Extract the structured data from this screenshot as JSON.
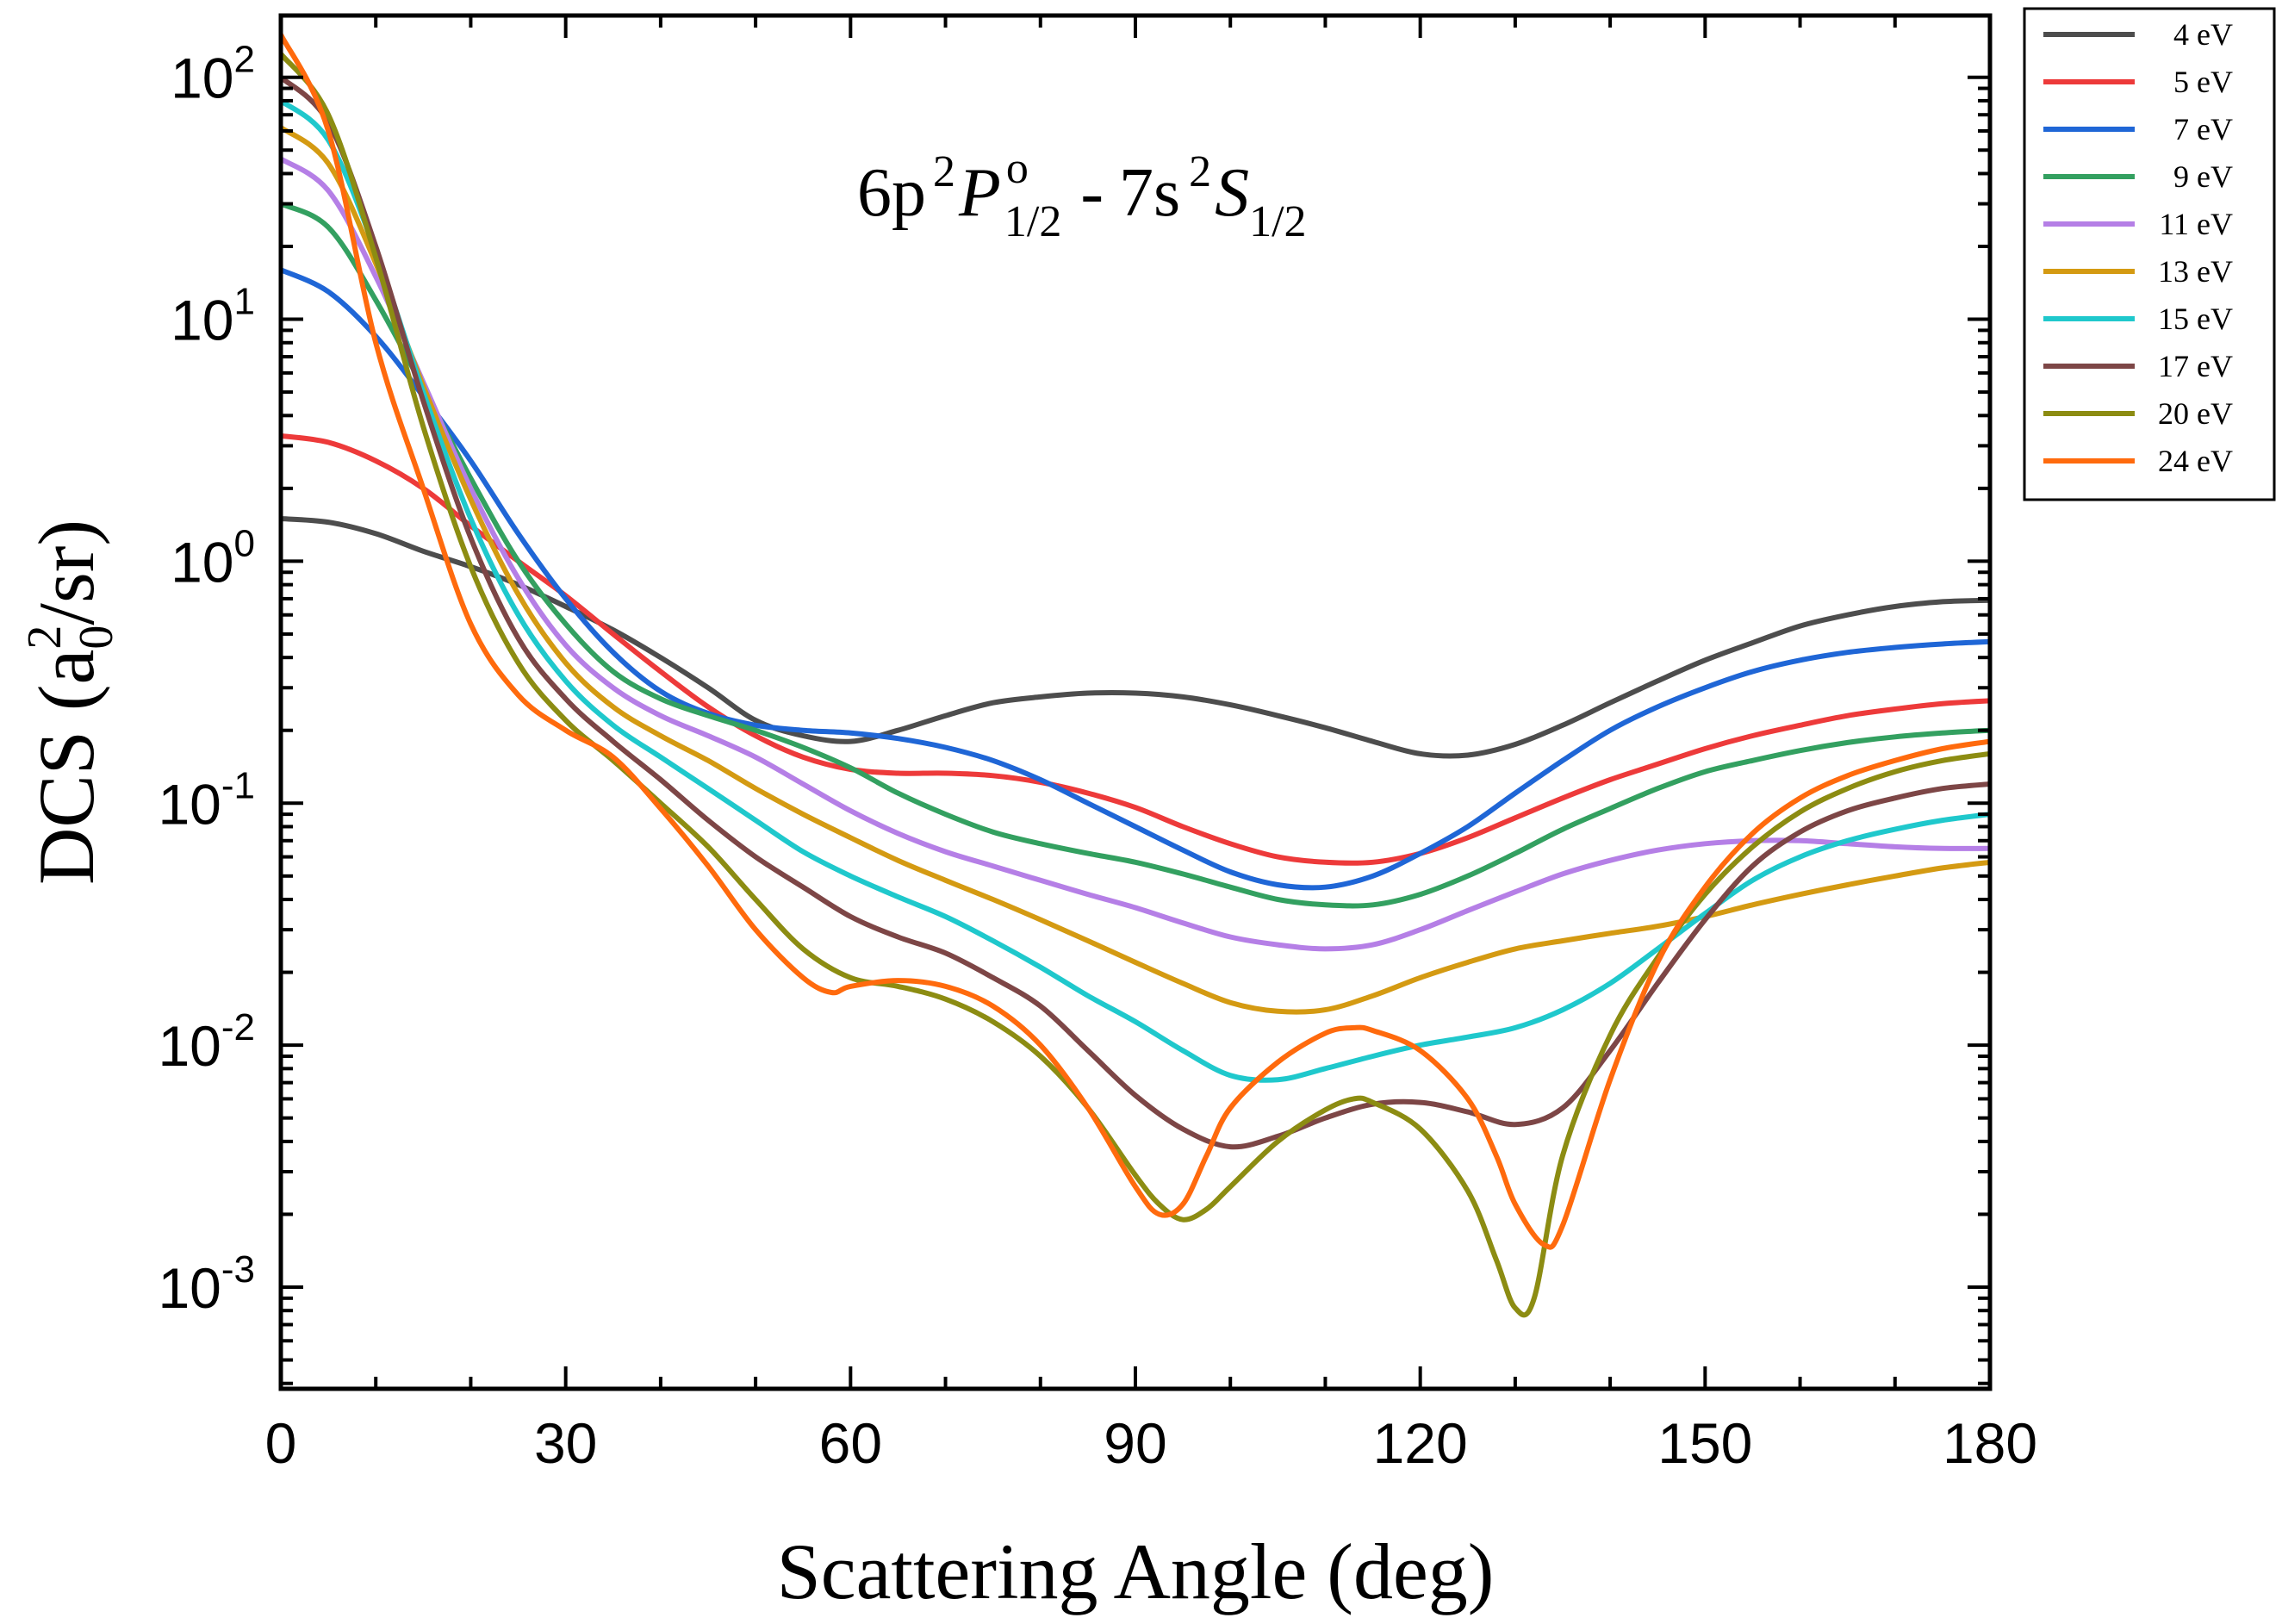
{
  "chart_data": {
    "type": "line",
    "title": "",
    "annotation": {
      "base": "6p",
      "sup1": "2",
      "term1": "P",
      "term1_sup": "o",
      "term1_sub": "1/2",
      "sep": "-",
      "base2": "7s",
      "sup2": "2",
      "term2": "S",
      "term2_sub": "1/2"
    },
    "xlabel": "Scattering Angle (deg)",
    "ylabel": {
      "prefix": "DCS (a",
      "sub": "0",
      "sup": "2",
      "suffix": "/sr)"
    },
    "xscale": "linear",
    "yscale": "log",
    "xlim": [
      0,
      180
    ],
    "ylim": [
      0.00038,
      180
    ],
    "xticks": [
      0,
      30,
      60,
      90,
      120,
      150,
      180
    ],
    "xtick_labels": [
      "0",
      "30",
      "60",
      "90",
      "120",
      "150",
      "180"
    ],
    "yticks": [
      0.001,
      0.01,
      0.1,
      1,
      10,
      100
    ],
    "ytick_labels": [
      {
        "base": "10",
        "exp": "-3"
      },
      {
        "base": "10",
        "exp": "-2"
      },
      {
        "base": "10",
        "exp": "-1"
      },
      {
        "base": "10",
        "exp": "0"
      },
      {
        "base": "10",
        "exp": "1"
      },
      {
        "base": "10",
        "exp": "2"
      }
    ],
    "grid": false,
    "legend_position": "outside-top-right",
    "series": [
      {
        "name": "4 eV",
        "color": "#4d4d4d",
        "x": [
          0,
          5,
          10,
          15,
          20,
          25,
          30,
          35,
          40,
          45,
          50,
          55,
          60,
          65,
          70,
          75,
          80,
          85,
          90,
          95,
          100,
          105,
          110,
          115,
          120,
          125,
          130,
          135,
          140,
          145,
          150,
          155,
          160,
          165,
          170,
          175,
          180
        ],
        "y": [
          1.5,
          1.45,
          1.3,
          1.1,
          0.95,
          0.8,
          0.65,
          0.52,
          0.4,
          0.3,
          0.22,
          0.19,
          0.18,
          0.2,
          0.23,
          0.26,
          0.275,
          0.285,
          0.285,
          0.275,
          0.255,
          0.23,
          0.205,
          0.18,
          0.16,
          0.158,
          0.175,
          0.21,
          0.26,
          0.32,
          0.39,
          0.46,
          0.54,
          0.6,
          0.65,
          0.68,
          0.69
        ]
      },
      {
        "name": "5 eV",
        "color": "#ed3a3a",
        "x": [
          0,
          5,
          10,
          15,
          20,
          25,
          30,
          35,
          40,
          45,
          50,
          55,
          60,
          65,
          70,
          75,
          80,
          85,
          90,
          95,
          100,
          105,
          110,
          115,
          120,
          125,
          130,
          135,
          140,
          145,
          150,
          155,
          160,
          165,
          170,
          175,
          180
        ],
        "y": [
          3.3,
          3.1,
          2.6,
          2.0,
          1.4,
          1.0,
          0.72,
          0.5,
          0.35,
          0.25,
          0.19,
          0.155,
          0.138,
          0.133,
          0.133,
          0.13,
          0.122,
          0.11,
          0.096,
          0.08,
          0.068,
          0.06,
          0.057,
          0.057,
          0.062,
          0.072,
          0.087,
          0.105,
          0.125,
          0.145,
          0.168,
          0.19,
          0.21,
          0.23,
          0.245,
          0.258,
          0.265
        ]
      },
      {
        "name": "7 eV",
        "color": "#1f66d6",
        "x": [
          0,
          5,
          10,
          15,
          20,
          25,
          30,
          35,
          40,
          45,
          50,
          55,
          60,
          65,
          70,
          75,
          80,
          85,
          90,
          95,
          100,
          105,
          110,
          115,
          120,
          125,
          130,
          135,
          140,
          145,
          150,
          155,
          160,
          165,
          170,
          175,
          180
        ],
        "y": [
          16,
          13,
          8.5,
          4.8,
          2.6,
          1.3,
          0.7,
          0.42,
          0.29,
          0.235,
          0.21,
          0.2,
          0.195,
          0.185,
          0.17,
          0.15,
          0.125,
          0.1,
          0.08,
          0.064,
          0.052,
          0.046,
          0.045,
          0.05,
          0.062,
          0.08,
          0.11,
          0.15,
          0.2,
          0.25,
          0.3,
          0.35,
          0.39,
          0.42,
          0.44,
          0.455,
          0.465
        ]
      },
      {
        "name": "9 eV",
        "color": "#33a060",
        "x": [
          0,
          5,
          10,
          15,
          20,
          25,
          30,
          35,
          40,
          45,
          50,
          55,
          60,
          65,
          70,
          75,
          80,
          85,
          90,
          95,
          100,
          105,
          110,
          115,
          120,
          125,
          130,
          135,
          140,
          145,
          150,
          155,
          160,
          165,
          170,
          175,
          180
        ],
        "y": [
          30,
          24,
          12,
          5.2,
          2.2,
          1.0,
          0.55,
          0.35,
          0.27,
          0.23,
          0.2,
          0.17,
          0.14,
          0.11,
          0.09,
          0.076,
          0.068,
          0.062,
          0.057,
          0.051,
          0.045,
          0.04,
          0.038,
          0.038,
          0.042,
          0.05,
          0.062,
          0.078,
          0.095,
          0.115,
          0.135,
          0.15,
          0.165,
          0.178,
          0.188,
          0.195,
          0.2
        ]
      },
      {
        "name": "11 eV",
        "color": "#b57fe6",
        "x": [
          0,
          5,
          10,
          15,
          20,
          25,
          30,
          35,
          40,
          45,
          50,
          55,
          60,
          65,
          70,
          75,
          80,
          85,
          90,
          95,
          100,
          105,
          110,
          115,
          120,
          125,
          130,
          135,
          140,
          145,
          150,
          155,
          160,
          165,
          170,
          175,
          180
        ],
        "y": [
          46,
          34,
          15,
          5.5,
          2.0,
          0.85,
          0.45,
          0.3,
          0.23,
          0.19,
          0.155,
          0.12,
          0.093,
          0.075,
          0.063,
          0.055,
          0.048,
          0.042,
          0.037,
          0.032,
          0.028,
          0.026,
          0.025,
          0.026,
          0.03,
          0.036,
          0.043,
          0.051,
          0.058,
          0.064,
          0.068,
          0.07,
          0.07,
          0.068,
          0.066,
          0.065,
          0.065
        ]
      },
      {
        "name": "13 eV",
        "color": "#d49a12",
        "x": [
          0,
          5,
          10,
          15,
          20,
          25,
          30,
          35,
          40,
          45,
          50,
          55,
          60,
          65,
          70,
          75,
          80,
          85,
          90,
          95,
          100,
          105,
          110,
          115,
          120,
          125,
          130,
          135,
          140,
          145,
          150,
          155,
          160,
          165,
          170,
          175,
          180
        ],
        "y": [
          62,
          44,
          17,
          5.3,
          1.8,
          0.73,
          0.38,
          0.25,
          0.19,
          0.15,
          0.115,
          0.09,
          0.072,
          0.058,
          0.048,
          0.04,
          0.033,
          0.027,
          0.022,
          0.018,
          0.015,
          0.0138,
          0.014,
          0.016,
          0.019,
          0.022,
          0.025,
          0.027,
          0.029,
          0.031,
          0.034,
          0.038,
          0.042,
          0.046,
          0.05,
          0.054,
          0.057
        ]
      },
      {
        "name": "15 eV",
        "color": "#1fc8cc",
        "x": [
          0,
          5,
          10,
          15,
          20,
          25,
          30,
          35,
          40,
          45,
          50,
          55,
          60,
          65,
          70,
          75,
          80,
          85,
          90,
          95,
          100,
          105,
          110,
          115,
          120,
          125,
          130,
          135,
          140,
          145,
          150,
          155,
          160,
          165,
          170,
          175,
          180
        ],
        "y": [
          80,
          55,
          19,
          5.0,
          1.5,
          0.6,
          0.32,
          0.21,
          0.155,
          0.115,
          0.085,
          0.063,
          0.05,
          0.041,
          0.034,
          0.027,
          0.021,
          0.016,
          0.0125,
          0.0095,
          0.0075,
          0.0072,
          0.008,
          0.009,
          0.01,
          0.0108,
          0.0118,
          0.014,
          0.018,
          0.025,
          0.035,
          0.048,
          0.06,
          0.07,
          0.078,
          0.085,
          0.09
        ]
      },
      {
        "name": "17 eV",
        "color": "#7d4646",
        "x": [
          0,
          5,
          10,
          15,
          20,
          25,
          30,
          35,
          40,
          45,
          50,
          55,
          60,
          65,
          70,
          75,
          80,
          85,
          90,
          95,
          100,
          105,
          110,
          115,
          120,
          125,
          130,
          135,
          140,
          145,
          150,
          155,
          160,
          165,
          170,
          175,
          180
        ],
        "y": [
          100,
          65,
          20,
          4.6,
          1.25,
          0.48,
          0.27,
          0.18,
          0.125,
          0.085,
          0.06,
          0.045,
          0.034,
          0.028,
          0.024,
          0.019,
          0.0145,
          0.0095,
          0.0062,
          0.0045,
          0.0038,
          0.0042,
          0.005,
          0.0057,
          0.0058,
          0.0053,
          0.0047,
          0.0055,
          0.0095,
          0.018,
          0.033,
          0.055,
          0.076,
          0.093,
          0.105,
          0.115,
          0.12
        ]
      },
      {
        "name": "20 eV",
        "color": "#8c8c12",
        "x": [
          0,
          5,
          10,
          15,
          20,
          25,
          30,
          35,
          40,
          45,
          50,
          55,
          60,
          65,
          70,
          75,
          80,
          85,
          90,
          92.5,
          95,
          97.5,
          100,
          105,
          110,
          113,
          115,
          120,
          125,
          128,
          130,
          132,
          135,
          140,
          145,
          150,
          155,
          160,
          165,
          170,
          175,
          180
        ],
        "y": [
          125,
          70,
          18,
          3.6,
          0.95,
          0.38,
          0.22,
          0.15,
          0.1,
          0.066,
          0.04,
          0.025,
          0.019,
          0.0175,
          0.0155,
          0.0125,
          0.009,
          0.0055,
          0.0029,
          0.0022,
          0.0019,
          0.0021,
          0.0026,
          0.004,
          0.0054,
          0.006,
          0.0058,
          0.0045,
          0.0025,
          0.0013,
          0.00082,
          0.0009,
          0.0035,
          0.011,
          0.023,
          0.042,
          0.066,
          0.092,
          0.115,
          0.135,
          0.15,
          0.16
        ]
      },
      {
        "name": "24 eV",
        "color": "#ff6a0d",
        "x": [
          0,
          5,
          10,
          15,
          20,
          25,
          30,
          35,
          40,
          45,
          50,
          55,
          58,
          60,
          65,
          70,
          75,
          80,
          85,
          90,
          92.5,
          95,
          97.5,
          100,
          105,
          110,
          113,
          115,
          120,
          125,
          128,
          130,
          133,
          135,
          140,
          145,
          150,
          155,
          160,
          165,
          170,
          175,
          180
        ],
        "y": [
          150,
          60,
          8,
          2.0,
          0.55,
          0.28,
          0.2,
          0.155,
          0.095,
          0.055,
          0.03,
          0.019,
          0.0165,
          0.0175,
          0.0185,
          0.0175,
          0.0145,
          0.01,
          0.0055,
          0.0026,
          0.002,
          0.0022,
          0.0035,
          0.0055,
          0.0085,
          0.0112,
          0.0118,
          0.0115,
          0.0095,
          0.006,
          0.0035,
          0.0022,
          0.0015,
          0.0018,
          0.0072,
          0.022,
          0.045,
          0.075,
          0.105,
          0.13,
          0.15,
          0.168,
          0.18
        ]
      }
    ]
  }
}
